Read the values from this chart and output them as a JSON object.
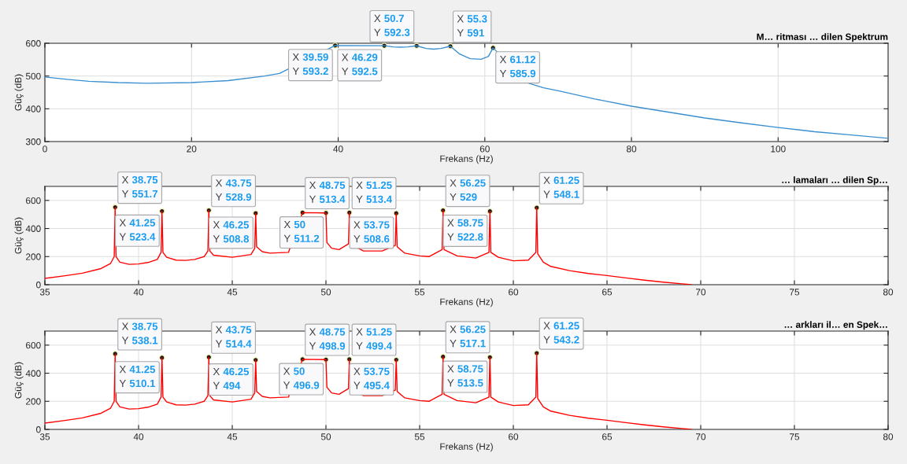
{
  "chart_data": [
    {
      "type": "line",
      "title": "M… ritması … dilen Spektrum",
      "xlabel": "Frekans (Hz)",
      "ylabel": "Güç (dB)",
      "xlim": [
        0,
        115
      ],
      "ylim": [
        300,
        600
      ],
      "xticks": [
        0,
        20,
        40,
        60,
        80,
        100
      ],
      "yticks": [
        300,
        400,
        500,
        600
      ],
      "grid": true,
      "x": [
        0,
        3,
        6,
        10,
        14,
        20,
        25,
        30,
        32,
        39.59,
        46.29,
        47.5,
        48.5,
        49.5,
        50.7,
        52,
        53,
        54,
        55.3,
        56.5,
        58,
        59.5,
        60.5,
        61.12,
        66,
        68,
        70,
        75,
        80,
        85,
        90,
        95,
        100,
        105,
        110,
        115
      ],
      "series": [
        {
          "color": "#3a8fd0",
          "values": [
            497,
            490,
            484,
            480,
            478,
            480,
            486,
            500,
            508,
            593.2,
            592.5,
            589,
            588,
            589,
            592.3,
            584,
            582,
            584,
            591,
            568,
            553,
            551,
            560,
            585.9,
            478,
            464,
            455,
            430,
            408,
            390,
            372,
            357,
            343,
            330,
            320,
            310
          ]
        }
      ],
      "annotations": [
        {
          "text": "X 39.59\nY 593.2",
          "x": 39.59,
          "y": 593.2
        },
        {
          "text": "X 46.29\nY 592.5",
          "x": 46.29,
          "y": 592.5
        },
        {
          "text": "X 50.7\nY 592.3",
          "x": 50.7,
          "y": 592.3
        },
        {
          "text": "X 55.3\nY 591",
          "x": 55.3,
          "y": 591
        },
        {
          "text": "X 61.12\nY 585.9",
          "x": 61.12,
          "y": 585.9
        }
      ]
    },
    {
      "type": "line",
      "title": "… lamaları … dilen Sp…",
      "xlabel": "Frekans (Hz)",
      "ylabel": "Güç (dB)",
      "xlim": [
        35,
        80
      ],
      "ylim": [
        0,
        700
      ],
      "xticks": [
        35,
        40,
        45,
        50,
        55,
        60,
        65,
        70,
        75,
        80
      ],
      "yticks": [
        0,
        200,
        400,
        600
      ],
      "grid": true,
      "x": [
        35,
        36,
        37,
        38,
        38.5,
        38.7,
        38.75,
        38.8,
        39,
        39.5,
        40,
        40.5,
        41,
        41.2,
        41.25,
        41.3,
        41.5,
        42,
        42.5,
        43,
        43.5,
        43.7,
        43.75,
        43.8,
        44,
        45,
        46,
        46.2,
        46.25,
        46.3,
        46.6,
        47,
        48,
        48.75,
        50,
        50.05,
        50.3,
        50.7,
        51.2,
        51.25,
        51.3,
        52,
        53,
        53.7,
        53.75,
        53.8,
        54.2,
        55,
        55.5,
        56.2,
        56.25,
        56.3,
        57,
        58,
        58.7,
        58.75,
        58.8,
        59.2,
        60,
        60.8,
        61.2,
        61.25,
        61.3,
        61.6,
        62,
        63,
        64,
        65,
        66,
        67,
        68,
        69,
        69.5
      ],
      "series": [
        {
          "color": "#ff0000",
          "values": [
            45,
            62,
            82,
            115,
            150,
            200,
            551.7,
            200,
            160,
            145,
            148,
            158,
            180,
            230,
            523.4,
            230,
            195,
            175,
            173,
            180,
            200,
            240,
            528.9,
            240,
            210,
            195,
            215,
            260,
            508.8,
            270,
            235,
            225,
            230,
            513.4,
            511.2,
            300,
            260,
            250,
            290,
            513.4,
            290,
            240,
            240,
            280,
            508.6,
            270,
            225,
            205,
            200,
            250,
            529,
            250,
            205,
            190,
            230,
            522.8,
            230,
            195,
            170,
            175,
            230,
            548.1,
            220,
            160,
            130,
            100,
            80,
            65,
            48,
            32,
            18,
            6,
            0
          ]
        }
      ],
      "annotations": [
        {
          "text": "X 38.75\nY 551.7",
          "x": 38.75,
          "y": 551.7
        },
        {
          "text": "X 41.25\nY 523.4",
          "x": 41.25,
          "y": 523.4
        },
        {
          "text": "X 43.75\nY 528.9",
          "x": 43.75,
          "y": 528.9
        },
        {
          "text": "X 46.25\nY 508.8",
          "x": 46.25,
          "y": 508.8
        },
        {
          "text": "X 48.75\nY 513.4",
          "x": 48.75,
          "y": 513.4
        },
        {
          "text": "X 50\nY 511.2",
          "x": 50,
          "y": 511.2
        },
        {
          "text": "X 51.25\nY 513.4",
          "x": 51.25,
          "y": 513.4
        },
        {
          "text": "X 53.75\nY 508.6",
          "x": 53.75,
          "y": 508.6
        },
        {
          "text": "X 56.25\nY 529",
          "x": 56.25,
          "y": 529
        },
        {
          "text": "X 58.75\nY 522.8",
          "x": 58.75,
          "y": 522.8
        },
        {
          "text": "X 61.25\nY 548.1",
          "x": 61.25,
          "y": 548.1
        }
      ]
    },
    {
      "type": "line",
      "title": "… arkları il… en Spek…",
      "xlabel": "Frekans (Hz)",
      "ylabel": "Güç (dB)",
      "xlim": [
        35,
        80
      ],
      "ylim": [
        0,
        700
      ],
      "xticks": [
        35,
        40,
        45,
        50,
        55,
        60,
        65,
        70,
        75,
        80
      ],
      "yticks": [
        0,
        200,
        400,
        600
      ],
      "grid": true,
      "x": [
        35,
        36,
        37,
        38,
        38.5,
        38.7,
        38.75,
        38.8,
        39,
        39.5,
        40,
        40.5,
        41,
        41.2,
        41.25,
        41.3,
        41.5,
        42,
        42.5,
        43,
        43.5,
        43.7,
        43.75,
        43.8,
        44,
        45,
        46,
        46.2,
        46.25,
        46.3,
        46.6,
        47,
        48,
        48.75,
        50,
        50.05,
        50.3,
        50.7,
        51.2,
        51.25,
        51.3,
        52,
        53,
        53.7,
        53.75,
        53.8,
        54.2,
        55,
        55.5,
        56.2,
        56.25,
        56.3,
        57,
        58,
        58.7,
        58.75,
        58.8,
        59.2,
        60,
        60.8,
        61.2,
        61.25,
        61.3,
        61.6,
        62,
        63,
        64,
        65,
        66,
        67,
        68,
        69,
        69.5
      ],
      "series": [
        {
          "color": "#ff0000",
          "values": [
            45,
            62,
            82,
            115,
            150,
            200,
            538.1,
            200,
            160,
            145,
            148,
            158,
            180,
            230,
            510.1,
            230,
            195,
            175,
            173,
            180,
            200,
            240,
            514.4,
            240,
            210,
            195,
            215,
            260,
            494,
            270,
            235,
            225,
            230,
            498.9,
            496.9,
            300,
            260,
            250,
            290,
            499.4,
            290,
            240,
            240,
            280,
            495.4,
            270,
            225,
            205,
            200,
            250,
            517.1,
            250,
            205,
            190,
            230,
            513.5,
            230,
            195,
            170,
            175,
            230,
            543.2,
            220,
            160,
            130,
            100,
            80,
            65,
            48,
            32,
            18,
            6,
            0
          ]
        }
      ],
      "annotations": [
        {
          "text": "X 38.75\nY 538.1",
          "x": 38.75,
          "y": 538.1
        },
        {
          "text": "X 41.25\nY 510.1",
          "x": 41.25,
          "y": 510.1
        },
        {
          "text": "X 43.75\nY 514.4",
          "x": 43.75,
          "y": 514.4
        },
        {
          "text": "X 46.25\nY 494",
          "x": 46.25,
          "y": 494
        },
        {
          "text": "X 48.75\nY 498.9",
          "x": 48.75,
          "y": 498.9
        },
        {
          "text": "X 50\nY 496.9",
          "x": 50,
          "y": 496.9
        },
        {
          "text": "X 51.25\nY 499.4",
          "x": 51.25,
          "y": 499.4
        },
        {
          "text": "X 53.75\nY 495.4",
          "x": 53.75,
          "y": 495.4
        },
        {
          "text": "X 56.25\nY 517.1",
          "x": 56.25,
          "y": 517.1
        },
        {
          "text": "X 58.75\nY 513.5",
          "x": 58.75,
          "y": 513.5
        },
        {
          "text": "X 61.25\nY 543.2",
          "x": 61.25,
          "y": 543.2
        }
      ]
    }
  ]
}
